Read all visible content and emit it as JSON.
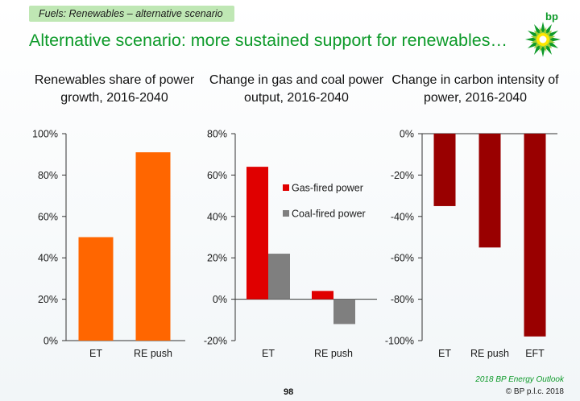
{
  "header": {
    "tag": "Fuels: Renewables – alternative scenario",
    "title": "Alternative scenario: more sustained support for renewables…",
    "logo_text": "bp",
    "logo_icon": "bp-helios-icon"
  },
  "chart_data": [
    {
      "type": "bar",
      "title": "Renewables share of power growth, 2016-2040",
      "categories": [
        "ET",
        "RE push"
      ],
      "values": [
        50,
        91
      ],
      "ylim": [
        0,
        100
      ],
      "yticks": [
        0,
        20,
        40,
        60,
        80,
        100
      ],
      "ytick_labels": [
        "0%",
        "20%",
        "40%",
        "60%",
        "80%",
        "100%"
      ],
      "xlabel": "",
      "ylabel": "",
      "grid": false,
      "color": "#ff6600"
    },
    {
      "type": "bar",
      "title": "Change in gas and coal power output, 2016-2040",
      "categories": [
        "ET",
        "RE push"
      ],
      "series": [
        {
          "name": "Gas-fired power",
          "values": [
            64,
            4
          ],
          "color": "#e00000"
        },
        {
          "name": "Coal-fired power",
          "values": [
            22,
            -12
          ],
          "color": "#7f7f7f"
        }
      ],
      "ylim": [
        -20,
        80
      ],
      "yticks": [
        -20,
        0,
        20,
        40,
        60,
        80
      ],
      "ytick_labels": [
        "-20%",
        "0%",
        "20%",
        "40%",
        "60%",
        "80%"
      ],
      "xlabel": "",
      "ylabel": "",
      "grid": false,
      "legend_position": "center-right"
    },
    {
      "type": "bar",
      "title": "Change in carbon intensity of power, 2016-2040",
      "categories": [
        "ET",
        "RE push",
        "EFT"
      ],
      "values": [
        -35,
        -55,
        -98
      ],
      "ylim": [
        -100,
        0
      ],
      "yticks": [
        -100,
        -80,
        -60,
        -40,
        -20,
        0
      ],
      "ytick_labels": [
        "-100%",
        "-80%",
        "-60%",
        "-40%",
        "-20%",
        "0%"
      ],
      "xlabel": "",
      "ylabel": "",
      "grid": false,
      "color": "#990000"
    }
  ],
  "footer": {
    "outlook": "2018 BP Energy Outlook",
    "copyright": "© BP p.l.c. 2018",
    "page_number": "98"
  }
}
